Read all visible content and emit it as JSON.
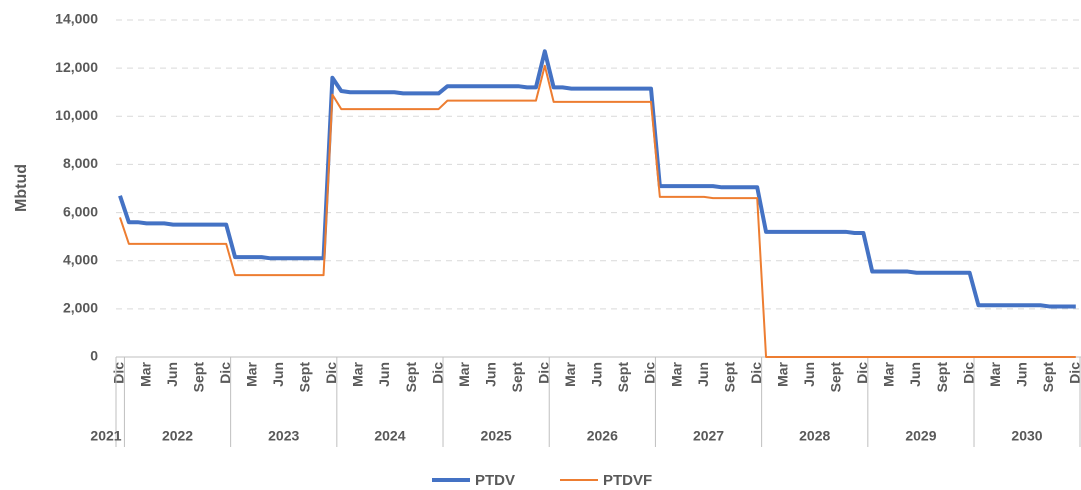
{
  "chart_data": {
    "type": "line",
    "y_label": "Mbtud",
    "categories": [
      "Dic",
      null,
      null,
      "Mar",
      null,
      null,
      "Jun",
      null,
      null,
      "Sept",
      null,
      null,
      "Dic",
      null,
      null,
      "Mar",
      null,
      null,
      "Jun",
      null,
      null,
      "Sept",
      null,
      null,
      "Dic",
      null,
      null,
      "Mar",
      null,
      null,
      "Jun",
      null,
      null,
      "Sept",
      null,
      null,
      "Dic",
      null,
      null,
      "Mar",
      null,
      null,
      "Jun",
      null,
      null,
      "Sept",
      null,
      null,
      "Dic",
      null,
      null,
      "Mar",
      null,
      null,
      "Jun",
      null,
      null,
      "Sept",
      null,
      null,
      "Dic",
      null,
      null,
      "Mar",
      null,
      null,
      "Jun",
      null,
      null,
      "Sept",
      null,
      null,
      "Dic",
      null,
      null,
      "Mar",
      null,
      null,
      "Jun",
      null,
      null,
      "Sept",
      null,
      null,
      "Dic",
      null,
      null,
      "Mar",
      null,
      null,
      "Jun",
      null,
      null,
      "Sept",
      null,
      null,
      "Dic",
      null,
      null,
      "Mar",
      null,
      null,
      "Jun",
      null,
      null,
      "Sept",
      null,
      null,
      "Dic"
    ],
    "year_groups": [
      {
        "label": "2021",
        "months": 1
      },
      {
        "label": "2022",
        "months": 12
      },
      {
        "label": "2023",
        "months": 12
      },
      {
        "label": "2024",
        "months": 12
      },
      {
        "label": "2025",
        "months": 12
      },
      {
        "label": "2026",
        "months": 12
      },
      {
        "label": "2027",
        "months": 12
      },
      {
        "label": "2028",
        "months": 12
      },
      {
        "label": "2029",
        "months": 12
      },
      {
        "label": "2030",
        "months": 12
      }
    ],
    "series": [
      {
        "name": "PTDV",
        "color": "#4472c4",
        "values": [
          6700,
          5600,
          5600,
          5550,
          5550,
          5550,
          5500,
          5500,
          5500,
          5500,
          5500,
          5500,
          5500,
          4150,
          4150,
          4150,
          4150,
          4100,
          4100,
          4100,
          4100,
          4100,
          4100,
          4100,
          11600,
          11050,
          11000,
          11000,
          11000,
          11000,
          11000,
          11000,
          10950,
          10950,
          10950,
          10950,
          10950,
          11250,
          11250,
          11250,
          11250,
          11250,
          11250,
          11250,
          11250,
          11250,
          11200,
          11200,
          12700,
          11200,
          11200,
          11150,
          11150,
          11150,
          11150,
          11150,
          11150,
          11150,
          11150,
          11150,
          11150,
          7100,
          7100,
          7100,
          7100,
          7100,
          7100,
          7100,
          7050,
          7050,
          7050,
          7050,
          7050,
          5200,
          5200,
          5200,
          5200,
          5200,
          5200,
          5200,
          5200,
          5200,
          5200,
          5150,
          5150,
          3550,
          3550,
          3550,
          3550,
          3550,
          3500,
          3500,
          3500,
          3500,
          3500,
          3500,
          3500,
          2150,
          2150,
          2150,
          2150,
          2150,
          2150,
          2150,
          2150,
          2100,
          2100,
          2100,
          2100
        ]
      },
      {
        "name": "PTDVF",
        "color": "#ed7d31",
        "values": [
          5800,
          4700,
          4700,
          4700,
          4700,
          4700,
          4700,
          4700,
          4700,
          4700,
          4700,
          4700,
          4700,
          3400,
          3400,
          3400,
          3400,
          3400,
          3400,
          3400,
          3400,
          3400,
          3400,
          3400,
          10900,
          10300,
          10300,
          10300,
          10300,
          10300,
          10300,
          10300,
          10300,
          10300,
          10300,
          10300,
          10300,
          10650,
          10650,
          10650,
          10650,
          10650,
          10650,
          10650,
          10650,
          10650,
          10650,
          10650,
          12100,
          10600,
          10600,
          10600,
          10600,
          10600,
          10600,
          10600,
          10600,
          10600,
          10600,
          10600,
          10600,
          6650,
          6650,
          6650,
          6650,
          6650,
          6650,
          6600,
          6600,
          6600,
          6600,
          6600,
          6600,
          0,
          0,
          0,
          0,
          0,
          0,
          0,
          0,
          0,
          0,
          0,
          0,
          0,
          0,
          0,
          0,
          0,
          0,
          0,
          0,
          0,
          0,
          0,
          0,
          0,
          0,
          0,
          0,
          0,
          0,
          0,
          0,
          0,
          0,
          0,
          0
        ]
      }
    ],
    "ylim": [
      0,
      14000
    ],
    "yticks": [
      0,
      {
        "value": 2000,
        "label": "2,000"
      },
      {
        "value": 4000,
        "label": "4,000"
      },
      {
        "value": 6000,
        "label": "6,000"
      },
      {
        "value": 8000,
        "label": "8,000"
      },
      {
        "value": 10000,
        "label": "10,000"
      },
      {
        "value": 12000,
        "label": "12,000"
      },
      {
        "value": 14000,
        "label": "14,000"
      }
    ],
    "grid": true,
    "legend": "bottom"
  }
}
